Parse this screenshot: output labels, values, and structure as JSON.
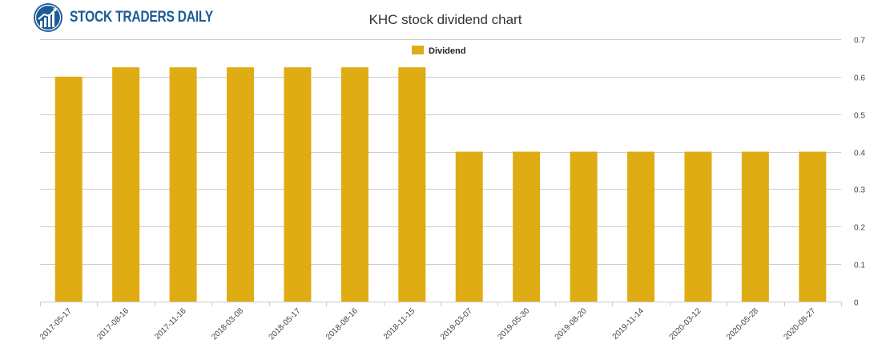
{
  "brand": {
    "name": "STOCK TRADERS DAILY",
    "logo_icon": "bull-chart-icon",
    "color": "#1d5b97"
  },
  "chart_data": {
    "type": "bar",
    "title": "KHC stock dividend chart",
    "xlabel": "",
    "ylabel": "",
    "legend_position": "top-center",
    "grid": true,
    "y_axis_side": "right",
    "ylim": [
      0,
      0.7
    ],
    "yticks": [
      "0",
      "0.1",
      "0.2",
      "0.3",
      "0.4",
      "0.5",
      "0.6",
      "0.7"
    ],
    "categories": [
      "2017-05-17",
      "2017-08-16",
      "2017-11-16",
      "2018-03-08",
      "2018-05-17",
      "2018-08-16",
      "2018-11-15",
      "2019-03-07",
      "2019-05-30",
      "2019-08-20",
      "2019-11-14",
      "2020-03-12",
      "2020-05-28",
      "2020-08-27"
    ],
    "series": [
      {
        "name": "Dividend",
        "color": "#e0ac14",
        "values": [
          0.6,
          0.625,
          0.625,
          0.625,
          0.625,
          0.625,
          0.625,
          0.4,
          0.4,
          0.4,
          0.4,
          0.4,
          0.4,
          0.4
        ]
      }
    ]
  }
}
